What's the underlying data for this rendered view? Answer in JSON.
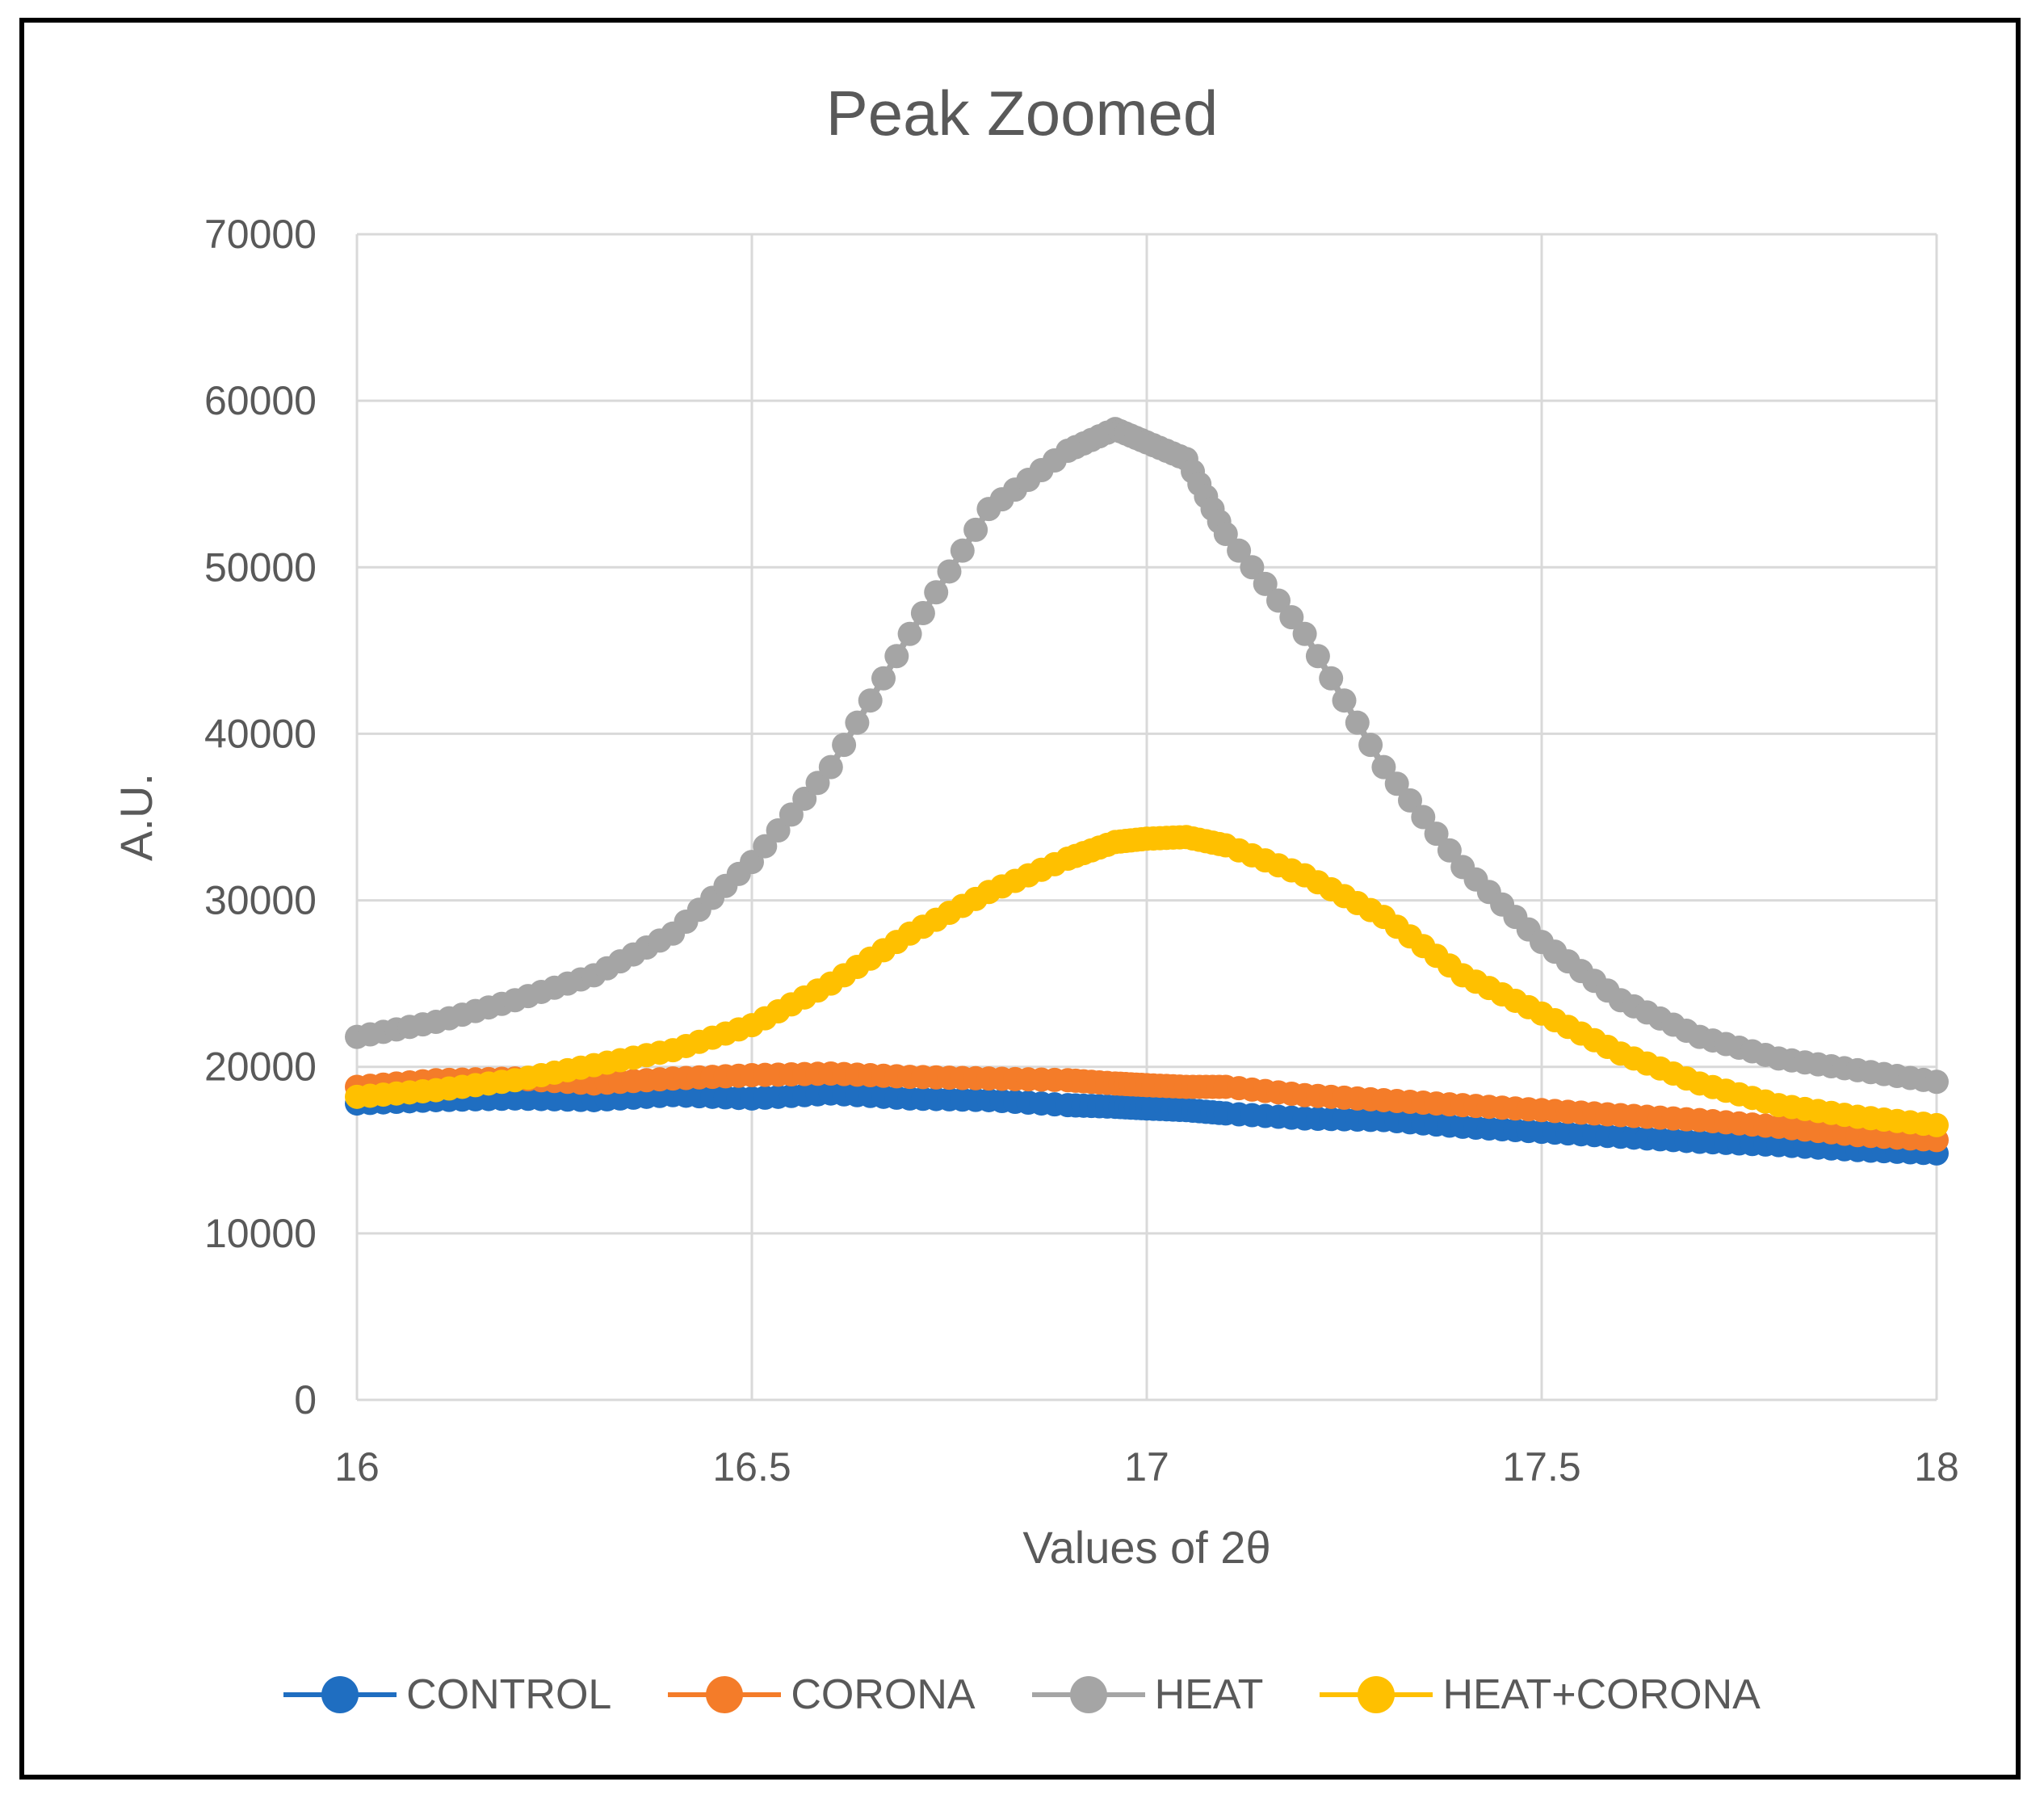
{
  "chart_data": {
    "type": "line",
    "title": "Peak Zoomed",
    "xlabel": "Values of 2θ",
    "ylabel": "A.U.",
    "xlim": [
      16,
      18
    ],
    "ylim": [
      0,
      70000
    ],
    "xticks": [
      "16",
      "16.5",
      "17",
      "17.5",
      "18"
    ],
    "yticks": [
      "0",
      "10000",
      "20000",
      "30000",
      "40000",
      "50000",
      "60000",
      "70000"
    ],
    "grid": true,
    "legend_position": "bottom",
    "x": [
      16.0,
      16.1,
      16.2,
      16.3,
      16.4,
      16.5,
      16.6,
      16.7,
      16.8,
      16.9,
      16.96,
      17.0,
      17.05,
      17.1,
      17.2,
      17.3,
      17.4,
      17.5,
      17.6,
      17.7,
      17.8,
      17.9,
      18.0
    ],
    "series": [
      {
        "name": "CONTROL",
        "color": "#1f6ec1",
        "values": [
          17800,
          18000,
          18100,
          18000,
          18300,
          18100,
          18400,
          18100,
          18000,
          17700,
          17600,
          17500,
          17400,
          17200,
          16900,
          16800,
          16400,
          16100,
          15800,
          15500,
          15300,
          15000,
          14800
        ]
      },
      {
        "name": "CORONA",
        "color": "#f47c29",
        "values": [
          18800,
          19200,
          19300,
          19000,
          19300,
          19500,
          19600,
          19400,
          19300,
          19200,
          19000,
          18900,
          18800,
          18800,
          18300,
          18000,
          17700,
          17400,
          17100,
          16800,
          16400,
          15900,
          15600
        ]
      },
      {
        "name": "HEAT",
        "color": "#a5a5a5",
        "values": [
          21800,
          22700,
          24000,
          25500,
          28000,
          32300,
          38000,
          46000,
          53500,
          57000,
          58300,
          57500,
          56500,
          52000,
          46000,
          38000,
          32000,
          27500,
          24000,
          21800,
          20500,
          19800,
          19100
        ]
      },
      {
        "name": "HEAT+CORONA",
        "color": "#ffc000",
        "values": [
          18200,
          18600,
          19200,
          20100,
          21000,
          22500,
          25000,
          28000,
          30500,
          32500,
          33500,
          33700,
          33800,
          33300,
          31500,
          29000,
          25500,
          23200,
          20800,
          19000,
          17700,
          17000,
          16500
        ]
      }
    ]
  }
}
